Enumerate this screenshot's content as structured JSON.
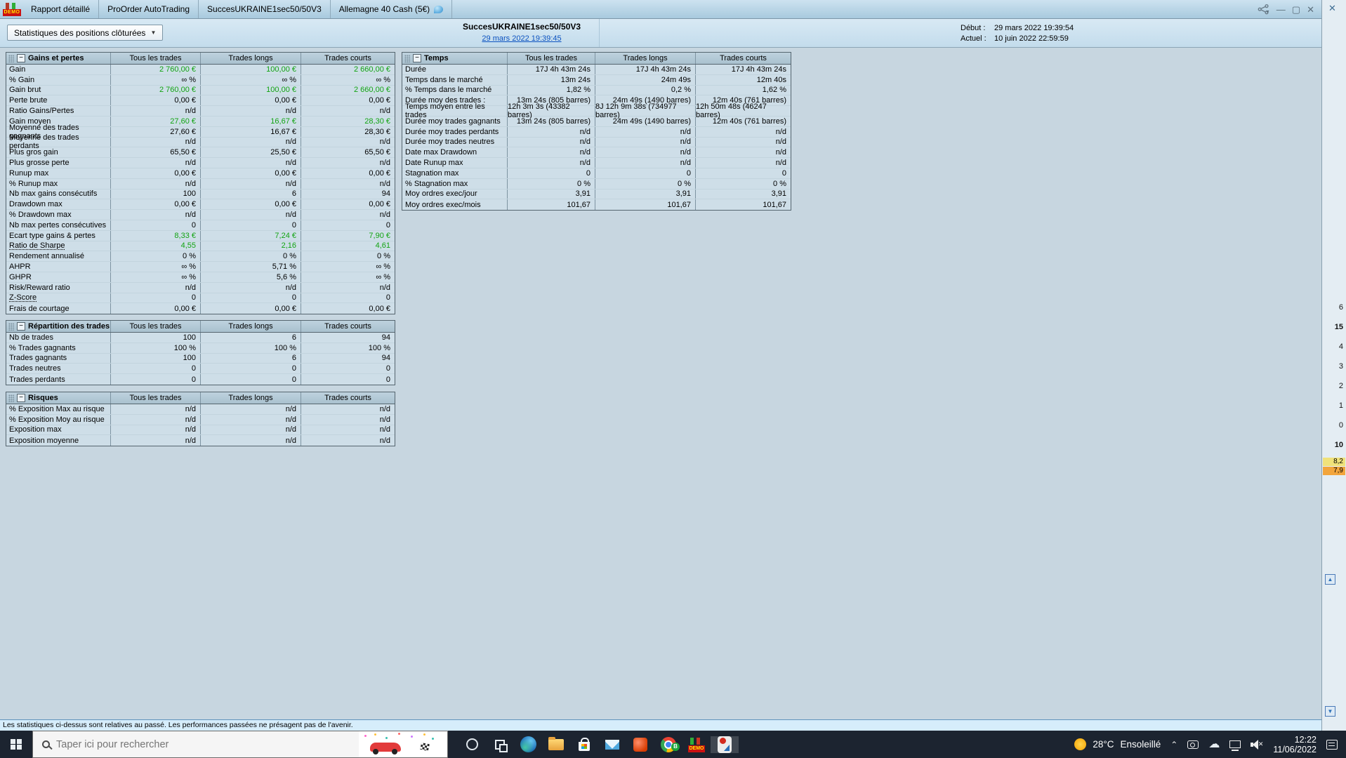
{
  "titlebar": {
    "demo_badge": "DEMO",
    "tabs": [
      "Rapport détaillé",
      "ProOrder AutoTrading",
      "SuccesUKRAINE1sec50/50V3",
      "Allemagne 40 Cash (5€)"
    ]
  },
  "header": {
    "stats_dropdown": "Statistiques des positions clôturées",
    "system_name": "SuccesUKRAINE1sec50/50V3",
    "system_date_link": "29 mars 2022 19:39:45",
    "debut_label": "Début :",
    "debut_value": "29 mars 2022 19:39:54",
    "actuel_label": "Actuel :",
    "actuel_value": "10 juin 2022 22:59:59"
  },
  "columns": [
    "Tous les trades",
    "Trades longs",
    "Trades courts"
  ],
  "tables": {
    "gains": {
      "title": "Gains et pertes",
      "rows": [
        {
          "label": "Gain",
          "values": [
            "2 760,00 €",
            "100,00 €",
            "2 660,00 €"
          ],
          "green": true
        },
        {
          "label": "% Gain",
          "values": [
            "∞ %",
            "∞ %",
            "∞ %"
          ]
        },
        {
          "label": "Gain brut",
          "values": [
            "2 760,00 €",
            "100,00 €",
            "2 660,00 €"
          ],
          "green": true
        },
        {
          "label": "Perte brute",
          "values": [
            "0,00 €",
            "0,00 €",
            "0,00 €"
          ]
        },
        {
          "label": "Ratio Gains/Pertes",
          "values": [
            "n/d",
            "n/d",
            "n/d"
          ]
        },
        {
          "label": "Gain moyen",
          "values": [
            "27,60 €",
            "16,67 €",
            "28,30 €"
          ],
          "green": true
        },
        {
          "label": "Moyenne des trades gagnants",
          "values": [
            "27,60 €",
            "16,67 €",
            "28,30 €"
          ]
        },
        {
          "label": "Moyenne des trades perdants",
          "values": [
            "n/d",
            "n/d",
            "n/d"
          ]
        },
        {
          "label": "Plus gros gain",
          "values": [
            "65,50 €",
            "25,50 €",
            "65,50 €"
          ]
        },
        {
          "label": "Plus grosse perte",
          "values": [
            "n/d",
            "n/d",
            "n/d"
          ]
        },
        {
          "label": "Runup max",
          "values": [
            "0,00 €",
            "0,00 €",
            "0,00 €"
          ]
        },
        {
          "label": "% Runup max",
          "values": [
            "n/d",
            "n/d",
            "n/d"
          ]
        },
        {
          "label": "Nb max gains consécutifs",
          "values": [
            "100",
            "6",
            "94"
          ]
        },
        {
          "label": "Drawdown max",
          "values": [
            "0,00 €",
            "0,00 €",
            "0,00 €"
          ]
        },
        {
          "label": "% Drawdown max",
          "values": [
            "n/d",
            "n/d",
            "n/d"
          ]
        },
        {
          "label": "Nb max pertes consécutives",
          "values": [
            "0",
            "0",
            "0"
          ]
        },
        {
          "label": "Ecart type gains & pertes",
          "values": [
            "8,33 €",
            "7,24 €",
            "7,90 €"
          ],
          "green": true
        },
        {
          "label": "Ratio de Sharpe",
          "values": [
            "4,55",
            "2,16",
            "4,61"
          ],
          "green": true,
          "underline": true
        },
        {
          "label": "Rendement annualisé",
          "values": [
            "0 %",
            "0 %",
            "0 %"
          ]
        },
        {
          "label": "AHPR",
          "values": [
            "∞ %",
            "5,71 %",
            "∞ %"
          ]
        },
        {
          "label": "GHPR",
          "values": [
            "∞ %",
            "5,6 %",
            "∞ %"
          ]
        },
        {
          "label": "Risk/Reward ratio",
          "values": [
            "n/d",
            "n/d",
            "n/d"
          ]
        },
        {
          "label": "Z-Score",
          "values": [
            "0",
            "0",
            "0"
          ],
          "underline": true
        },
        {
          "label": "Frais de courtage",
          "values": [
            "0,00 €",
            "0,00 €",
            "0,00 €"
          ]
        }
      ]
    },
    "temps": {
      "title": "Temps",
      "rows": [
        {
          "label": "Durée",
          "values": [
            "17J 4h 43m 24s",
            "17J 4h 43m 24s",
            "17J 4h 43m 24s"
          ]
        },
        {
          "label": "Temps dans le marché",
          "values": [
            "13m 24s",
            "24m 49s",
            "12m 40s"
          ]
        },
        {
          "label": "% Temps dans le marché",
          "values": [
            "1,82 %",
            "0,2 %",
            "1,62 %"
          ]
        },
        {
          "label": "Durée moy des trades :",
          "values": [
            "13m 24s (805 barres)",
            "24m 49s (1490 barres)",
            "12m 40s (761 barres)"
          ]
        },
        {
          "label": "Temps moyen entre les trades",
          "values": [
            "12h 3m 3s (43382 barres)",
            "8J 12h 9m 38s (734977 barres)",
            "12h 50m 48s (46247 barres)"
          ]
        },
        {
          "label": "Durée moy trades gagnants",
          "values": [
            "13m 24s (805 barres)",
            "24m 49s (1490 barres)",
            "12m 40s (761 barres)"
          ]
        },
        {
          "label": "Durée moy trades perdants",
          "values": [
            "n/d",
            "n/d",
            "n/d"
          ]
        },
        {
          "label": "Durée moy trades neutres",
          "values": [
            "n/d",
            "n/d",
            "n/d"
          ]
        },
        {
          "label": "Date max Drawdown",
          "values": [
            "n/d",
            "n/d",
            "n/d"
          ]
        },
        {
          "label": "Date Runup max",
          "values": [
            "n/d",
            "n/d",
            "n/d"
          ]
        },
        {
          "label": "Stagnation max",
          "values": [
            "0",
            "0",
            "0"
          ]
        },
        {
          "label": "% Stagnation max",
          "values": [
            "0 %",
            "0 %",
            "0 %"
          ]
        },
        {
          "label": "Moy ordres exec/jour",
          "values": [
            "3,91",
            "3,91",
            "3,91"
          ]
        },
        {
          "label": "Moy ordres exec/mois",
          "values": [
            "101,67",
            "101,67",
            "101,67"
          ]
        }
      ]
    },
    "repartition": {
      "title": "Répartition des trades",
      "rows": [
        {
          "label": "Nb de trades",
          "values": [
            "100",
            "6",
            "94"
          ]
        },
        {
          "label": "% Trades gagnants",
          "values": [
            "100 %",
            "100 %",
            "100 %"
          ]
        },
        {
          "label": "Trades gagnants",
          "values": [
            "100",
            "6",
            "94"
          ]
        },
        {
          "label": "Trades neutres",
          "values": [
            "0",
            "0",
            "0"
          ]
        },
        {
          "label": "Trades perdants",
          "values": [
            "0",
            "0",
            "0"
          ]
        }
      ]
    },
    "risques": {
      "title": "Risques",
      "rows": [
        {
          "label": "% Exposition Max au risque",
          "values": [
            "n/d",
            "n/d",
            "n/d"
          ]
        },
        {
          "label": "% Exposition Moy au risque",
          "values": [
            "n/d",
            "n/d",
            "n/d"
          ]
        },
        {
          "label": "Exposition max",
          "values": [
            "n/d",
            "n/d",
            "n/d"
          ]
        },
        {
          "label": "Exposition moyenne",
          "values": [
            "n/d",
            "n/d",
            "n/d"
          ]
        }
      ]
    }
  },
  "footer": {
    "disclaimer": "Les statistiques ci-dessus sont relatives au passé. Les performances passées ne présagent pas de l'avenir."
  },
  "right_edge": {
    "axis_values": [
      {
        "text": "6"
      },
      {
        "text": "15",
        "bold": true
      },
      {
        "text": "4"
      },
      {
        "text": "3"
      },
      {
        "text": "2"
      },
      {
        "text": "1"
      },
      {
        "text": "0"
      },
      {
        "text": "10",
        "bold": true
      }
    ],
    "highlights": [
      {
        "text": "8,2",
        "bg": "#f0e27a"
      },
      {
        "text": "7,9",
        "bg": "#f2a53c"
      }
    ]
  },
  "taskbar": {
    "search_placeholder": "Taper ici pour rechercher",
    "app_icons": [
      "cortana",
      "task-view",
      "edge",
      "file-explorer",
      "store",
      "mail",
      "office",
      "chrome",
      "demo-trading",
      "prorealtime"
    ],
    "chrome_badge": "B",
    "tray": {
      "weather_temp": "28°C",
      "weather_cond": "Ensoleillé",
      "time": "12:22",
      "date": "11/06/2022"
    }
  },
  "colors": {
    "positive_green": "#12a312",
    "link_blue": "#0b52c0",
    "highlight_yellow": "#f0e27a",
    "highlight_orange": "#f2a53c"
  }
}
